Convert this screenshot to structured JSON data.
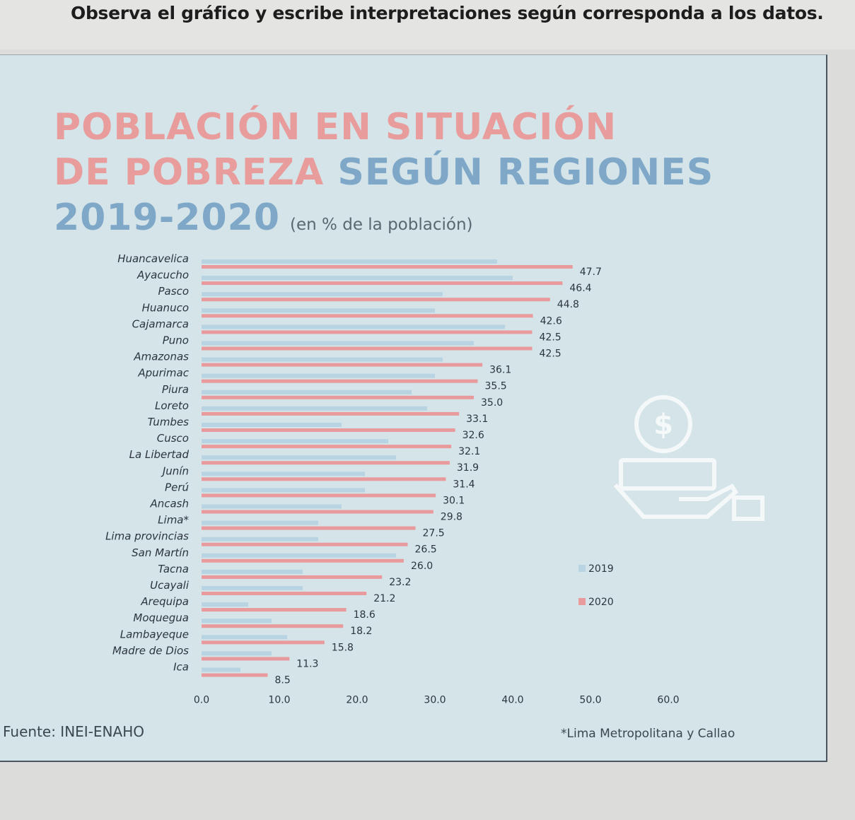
{
  "instruction": "Observa el gráfico y escribe interpretaciones según corresponda a los datos.",
  "title": {
    "line1": "POBLACIÓN EN SITUACIÓN",
    "line2_a": "DE POBREZA",
    "line2_b": "SEGÚN REGIONES",
    "line3": "2019-2020",
    "unit": "(en % de la población)"
  },
  "source": "Fuente: INEI-ENAHO",
  "footnote": "*Lima Metropolitana y Callao",
  "colors": {
    "s2019": "#b8d4e2",
    "s2020": "#e89a9c",
    "axis_text": "#2c3440"
  },
  "icons": [
    "coin-icon",
    "hand-with-money-icon"
  ],
  "chart_data": {
    "type": "bar",
    "orientation": "horizontal",
    "categories": [
      "Huancavelica",
      "Ayacucho",
      "Pasco",
      "Huanuco",
      "Cajamarca",
      "Puno",
      "Amazonas",
      "Apurimac",
      "Piura",
      "Loreto",
      "Tumbes",
      "Cusco",
      "La Libertad",
      "Junín",
      "Perú",
      "Ancash",
      "Lima*",
      "Lima provincias",
      "San Martín",
      "Tacna",
      "Ucayali",
      "Arequipa",
      "Moquegua",
      "Lambayeque",
      "Madre de Dios",
      "Ica"
    ],
    "series": [
      {
        "name": "2019",
        "values": [
          38.0,
          40.0,
          31.0,
          30.0,
          39.0,
          35.0,
          31.0,
          30.0,
          27.0,
          29.0,
          18.0,
          24.0,
          25.0,
          21.0,
          21.0,
          18.0,
          15.0,
          15.0,
          25.0,
          13.0,
          13.0,
          6.0,
          9.0,
          11.0,
          9.0,
          5.0
        ]
      },
      {
        "name": "2020",
        "values": [
          47.7,
          46.4,
          44.8,
          42.6,
          42.5,
          42.5,
          36.1,
          35.5,
          35.0,
          33.1,
          32.6,
          32.1,
          31.9,
          31.4,
          30.1,
          29.8,
          27.5,
          26.5,
          26.0,
          23.2,
          21.2,
          18.6,
          18.2,
          15.8,
          11.3,
          8.5
        ]
      }
    ],
    "value_labels_2020": [
      "47.7",
      "46.4",
      "44.8",
      "42.6",
      "42.5",
      "42.5",
      "36.1",
      "35.5",
      "35.0",
      "33.1",
      "32.6",
      "32.1",
      "31.9",
      "31.4",
      "30.1",
      "29.8",
      "27.5",
      "26.5",
      "26.0",
      "23.2",
      "21.2",
      "18.6",
      "18.2",
      "15.8",
      "11.3",
      "8.5"
    ],
    "x_ticks": [
      "0.0",
      "10.0",
      "20.0",
      "30.0",
      "40.0",
      "50.0",
      "60.0"
    ],
    "xlim": [
      0,
      60
    ],
    "legend": [
      "2019",
      "2020"
    ],
    "legend_position": "right",
    "grid": false
  }
}
